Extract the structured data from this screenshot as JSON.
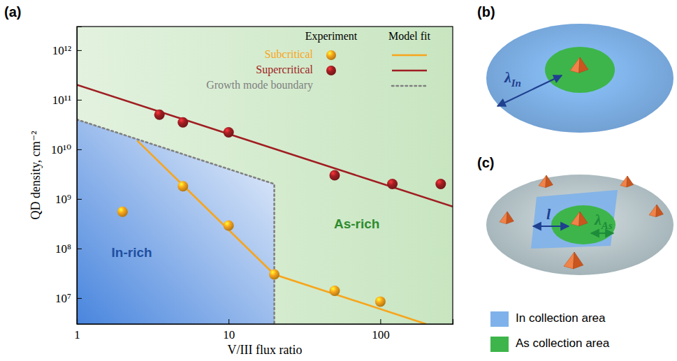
{
  "chart_data": {
    "type": "scatter",
    "panel_label": "(a)",
    "x_label": "V/III flux ratio",
    "y_label": "QD density, cm⁻²",
    "log": true,
    "grid": false,
    "legend": "upper right",
    "legend_columns": [
      "Experiment",
      "Model fit"
    ],
    "xlim": [
      1,
      300
    ],
    "xticks": [
      1,
      10,
      100
    ],
    "ylim": [
      3000000,
      3000000000000
    ],
    "yticks": [
      {
        "value": 10000000,
        "label": "10⁷"
      },
      {
        "value": 100000000,
        "label": "10⁸"
      },
      {
        "value": 1000000000,
        "label": "10⁹"
      },
      {
        "value": 10000000000,
        "label": "10¹⁰"
      },
      {
        "value": 100000000000,
        "label": "10¹¹"
      },
      {
        "value": 1000000000000,
        "label": "10¹²"
      }
    ],
    "series": [
      {
        "name": "Subcritical",
        "type": "scatter",
        "marker": "circle",
        "color": "#f7a51c",
        "x": [
          2,
          5,
          10,
          20,
          50,
          100
        ],
        "values": [
          550000000,
          1800000000,
          290000000,
          30000000,
          14000000,
          8500000
        ],
        "fit": {
          "type": "line",
          "line_style": "solid",
          "x": [
            2.5,
            20,
            200
          ],
          "values": [
            15000000000,
            30000000,
            3000000
          ]
        }
      },
      {
        "name": "Supercritical",
        "type": "scatter",
        "marker": "circle",
        "color": "#a01e22",
        "x": [
          3.5,
          5,
          10,
          50,
          120,
          250
        ],
        "values": [
          50000000000,
          35000000000,
          22000000000,
          3000000000,
          2000000000,
          2000000000
        ],
        "fit": {
          "type": "line",
          "line_style": "solid",
          "x": [
            1,
            300
          ],
          "values": [
            200000000000,
            700000000
          ]
        }
      },
      {
        "name": "Growth mode boundary",
        "type": "line",
        "line_style": "dotted",
        "color": "#808080",
        "x": [
          1,
          20,
          20
        ],
        "values": [
          40000000000,
          2000000000,
          3000000
        ]
      }
    ],
    "regions": [
      {
        "name": "In-rich",
        "color": "#3f7fdc",
        "label_x": 2.3,
        "label_y": 80000000
      },
      {
        "name": "As-rich",
        "color": "#7cc26a",
        "label_x": 70,
        "label_y": 300000000
      }
    ]
  },
  "diagrams": {
    "b": {
      "label": "(b)",
      "arrow_label": {
        "symbol": "λ",
        "subscript": "In"
      }
    },
    "c": {
      "label": "(c)",
      "arrow_labels": [
        {
          "symbol": "l"
        },
        {
          "symbol": "λ",
          "subscript": "As"
        }
      ],
      "legend": [
        {
          "text": "In collection area",
          "color": "#7fb2ea"
        },
        {
          "text": "As collection area",
          "color": "#3db54a"
        }
      ]
    }
  }
}
